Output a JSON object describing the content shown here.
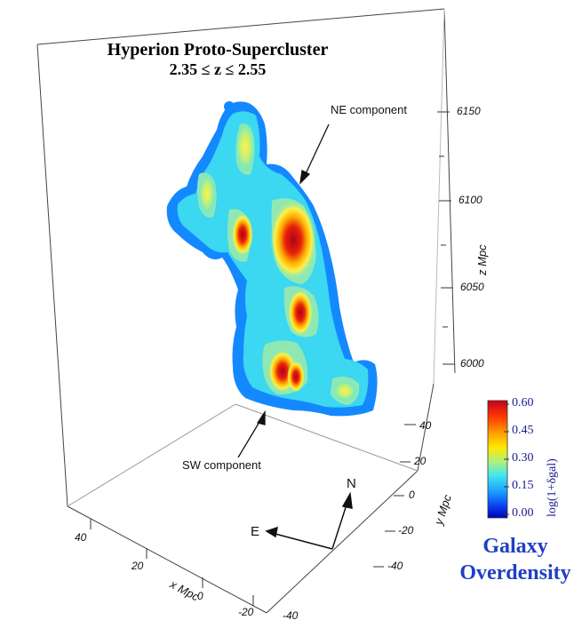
{
  "title": "Hyperion Proto-Supercluster",
  "subtitle": "2.35 ≤ z ≤ 2.55",
  "caption": [
    "Galaxy",
    "Overdensity"
  ],
  "annotations": {
    "ne": "NE component",
    "sw": "SW component"
  },
  "compass": {
    "north": "N",
    "east": "E"
  },
  "axes": {
    "z_label": "z Mpc",
    "y_label": "y Mpc",
    "x_label": "x Mpc",
    "z_ticks": [
      "6150",
      "6100",
      "6050",
      "6000"
    ],
    "y_ticks": [
      "40",
      "20",
      "0",
      "-20",
      "-40"
    ],
    "x_ticks": [
      "40",
      "20",
      "0",
      "-20",
      "-40"
    ]
  },
  "colorbar": {
    "label": "log(1+δgal)",
    "ticks": [
      "0.60",
      "0.45",
      "0.30",
      "0.15",
      "0.00"
    ],
    "colors": [
      "#c8001e",
      "#ff5a00",
      "#ffd200",
      "#bff07a",
      "#40e6f0",
      "#1aa0ff",
      "#0a3cf0",
      "#0000b4"
    ]
  }
}
